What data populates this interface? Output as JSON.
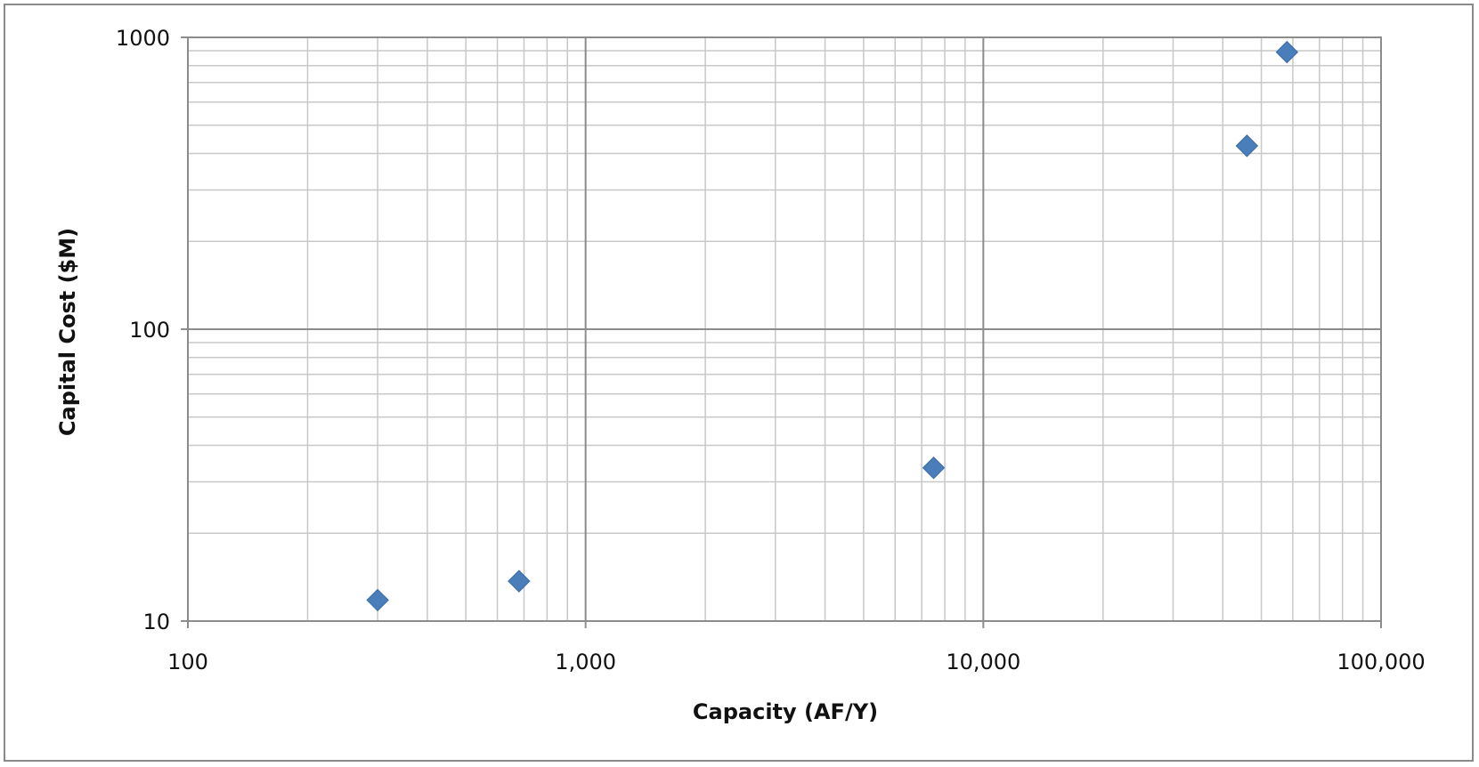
{
  "chart_data": {
    "type": "scatter",
    "title": "",
    "xlabel": "Capacity (AF/Y)",
    "ylabel": "Capital Cost ($M)",
    "x_scale": "log",
    "y_scale": "log",
    "xlim": [
      100,
      100000
    ],
    "ylim": [
      10,
      1000
    ],
    "x_ticks": [
      100,
      1000,
      10000,
      100000
    ],
    "x_tick_labels": [
      "100",
      "1,000",
      "10,000",
      "100,000"
    ],
    "y_ticks": [
      10,
      100,
      1000
    ],
    "y_tick_labels": [
      "10",
      "100",
      "1000"
    ],
    "grid": true,
    "minor_grid": true,
    "legend": "none",
    "marker": "diamond",
    "colors": {
      "marker": "#4a7ebb",
      "grid_major": "#8c8c8c",
      "grid_minor": "#c8c8c8",
      "frame": "#8a8a8a"
    },
    "series": [
      {
        "points": [
          {
            "x": 300,
            "y": 11.8
          },
          {
            "x": 680,
            "y": 13.7
          },
          {
            "x": 7500,
            "y": 33.5
          },
          {
            "x": 46000,
            "y": 425
          },
          {
            "x": 58000,
            "y": 890
          }
        ]
      }
    ]
  }
}
